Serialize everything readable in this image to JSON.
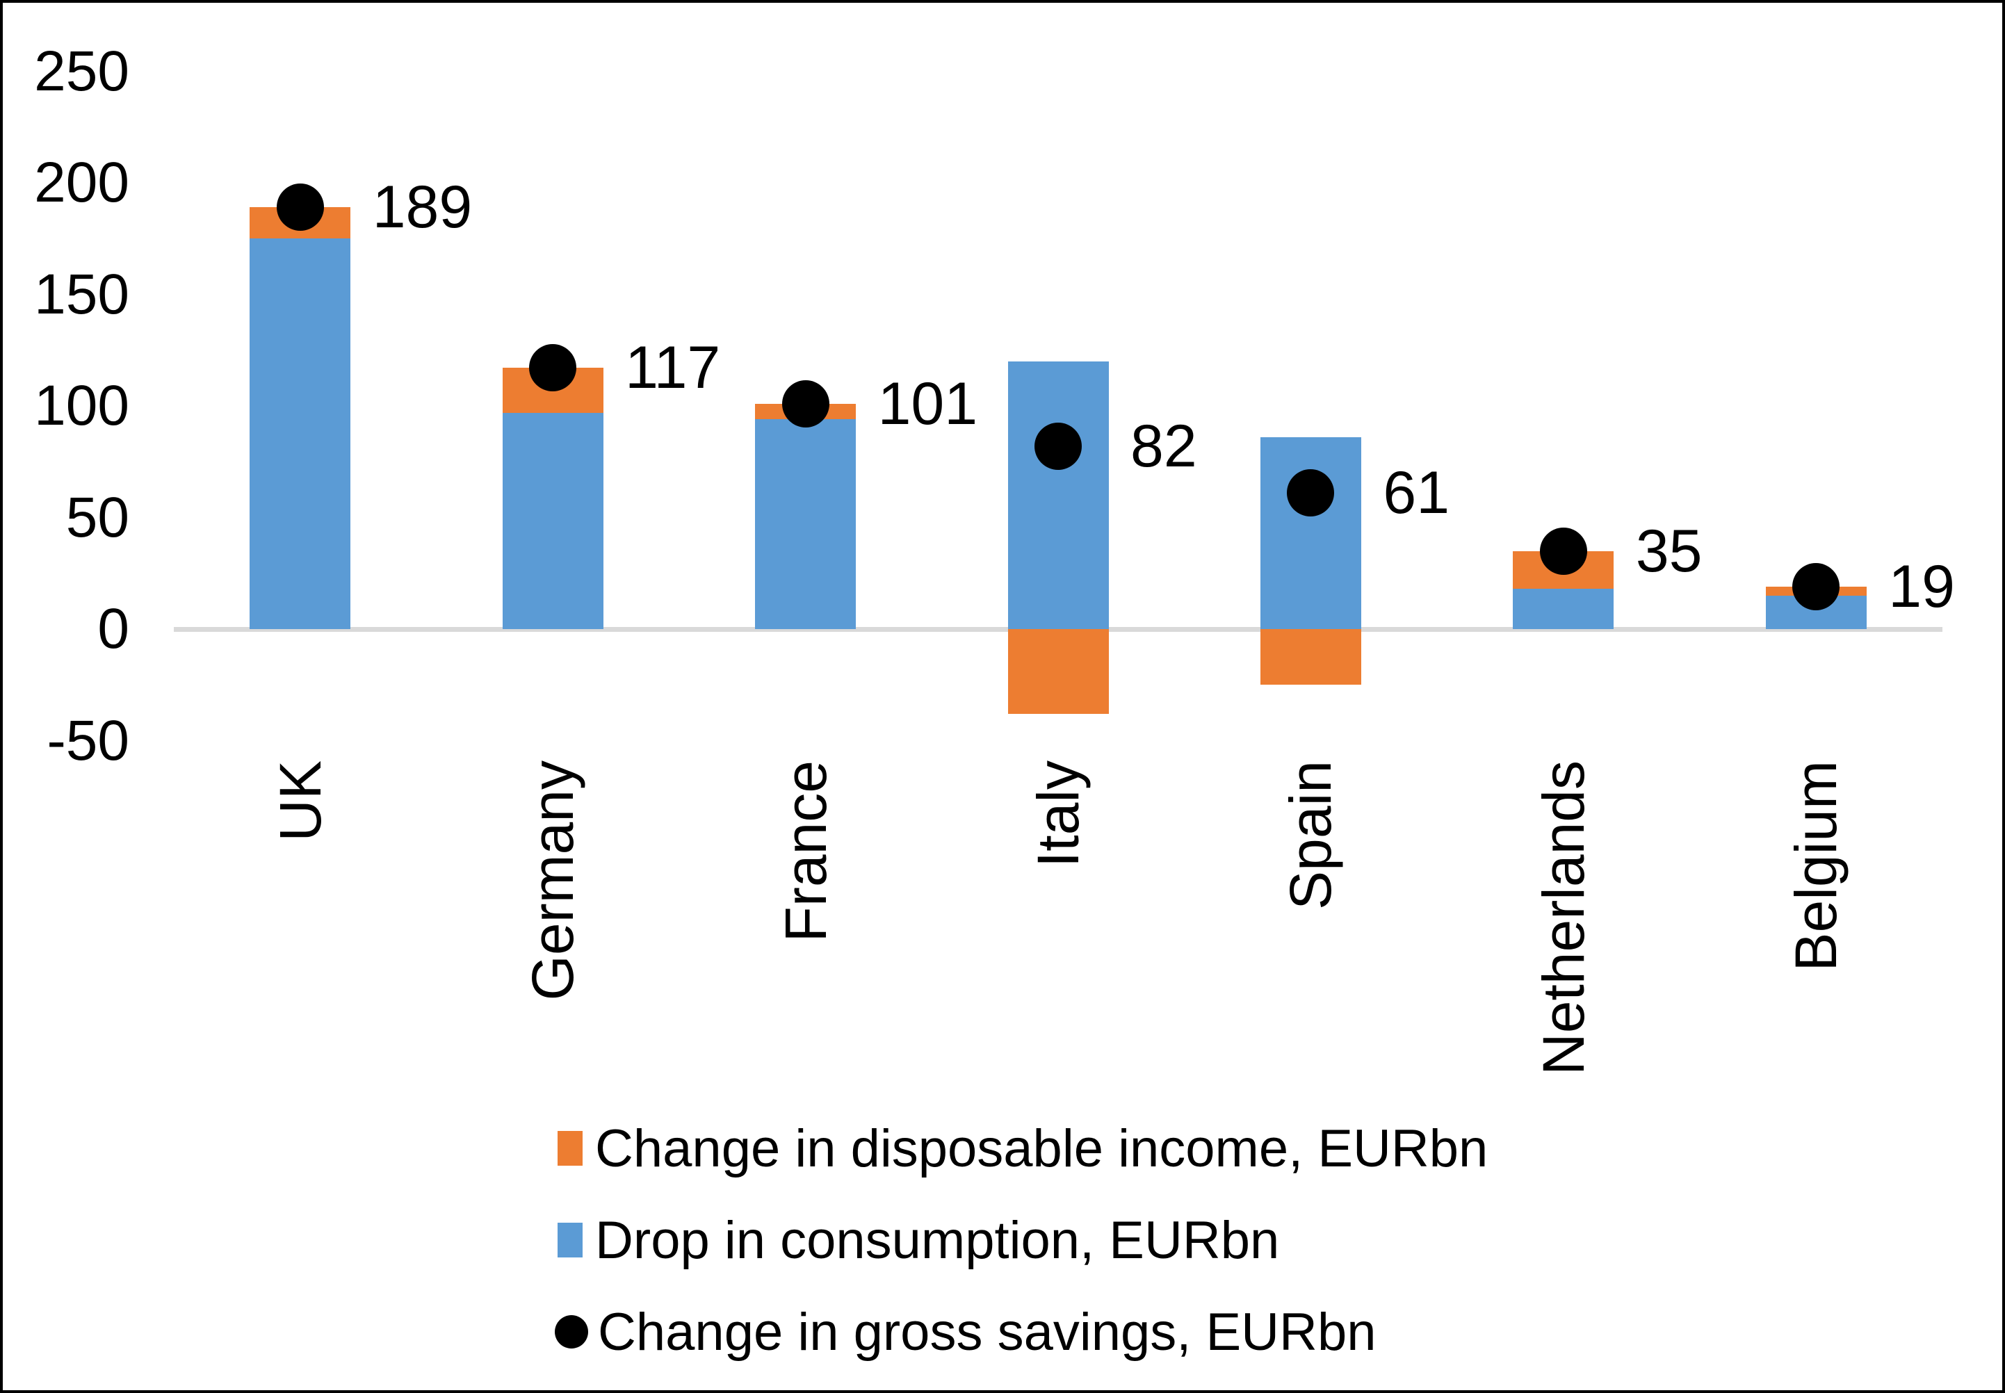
{
  "chart_data": {
    "type": "bar",
    "stacked": true,
    "categories": [
      "UK",
      "Germany",
      "France",
      "Italy",
      "Spain",
      "Netherlands",
      "Belgium"
    ],
    "series": [
      {
        "name": "Change in disposable income, EURbn",
        "type": "bar",
        "color": "#ED7D31",
        "values": [
          14,
          20,
          7,
          -38,
          -25,
          17,
          4
        ]
      },
      {
        "name": "Drop in consumption, EURbn",
        "type": "bar",
        "color": "#5B9BD5",
        "values": [
          175,
          97,
          94,
          120,
          86,
          18,
          15
        ]
      },
      {
        "name": "Change in gross savings, EURbn",
        "type": "scatter",
        "color": "#000000",
        "values": [
          189,
          117,
          101,
          82,
          61,
          35,
          19
        ]
      }
    ],
    "data_labels": [
      "189",
      "117",
      "101",
      "82",
      "61",
      "35",
      "19"
    ],
    "y_axis": {
      "ticks": [
        250,
        200,
        150,
        100,
        50,
        0,
        -50
      ],
      "min": -50,
      "max": 250,
      "gridlines": false,
      "zero_line_color": "#D9D9D9"
    },
    "xlabel": "",
    "ylabel": "",
    "legend_position": "bottom-left"
  }
}
